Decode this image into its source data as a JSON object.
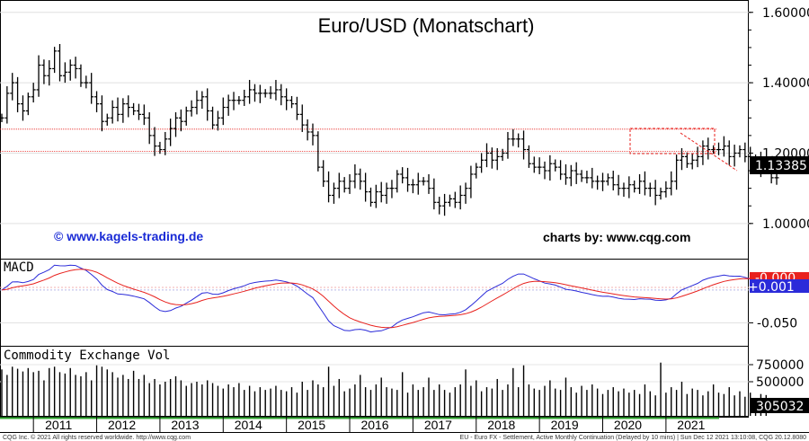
{
  "chart_data": [
    {
      "type": "ohlc",
      "title": "Euro/USD (Monatschart)",
      "watermark": "© www.kagels-trading.de",
      "source_note": "charts by: www.cqg.com",
      "last_value_label": "1.13385",
      "last_value": 1.13385,
      "y_ticks": [
        {
          "value": 1.6,
          "label": "1.60000"
        },
        {
          "value": 1.4,
          "label": "1.40000"
        },
        {
          "value": 1.2,
          "label": "1.20000"
        },
        {
          "value": 1.0,
          "label": "1.00000"
        }
      ],
      "ylim": [
        0.9,
        1.63
      ],
      "x_start": 2010.5,
      "x_end": 2022.0,
      "horizontal_levels": [
        1.268,
        1.205
      ],
      "monthly_close": [
        1.3,
        1.37,
        1.4,
        1.34,
        1.32,
        1.36,
        1.38,
        1.45,
        1.42,
        1.44,
        1.49,
        1.42,
        1.43,
        1.45,
        1.44,
        1.4,
        1.4,
        1.36,
        1.34,
        1.29,
        1.3,
        1.33,
        1.31,
        1.34,
        1.33,
        1.32,
        1.31,
        1.3,
        1.25,
        1.22,
        1.21,
        1.24,
        1.27,
        1.3,
        1.29,
        1.32,
        1.33,
        1.35,
        1.36,
        1.32,
        1.28,
        1.3,
        1.33,
        1.35,
        1.35,
        1.35,
        1.36,
        1.38,
        1.37,
        1.37,
        1.37,
        1.37,
        1.38,
        1.36,
        1.35,
        1.34,
        1.31,
        1.28,
        1.26,
        1.25,
        1.16,
        1.12,
        1.08,
        1.1,
        1.12,
        1.1,
        1.12,
        1.14,
        1.12,
        1.09,
        1.06,
        1.09,
        1.08,
        1.1,
        1.1,
        1.14,
        1.13,
        1.11,
        1.11,
        1.12,
        1.12,
        1.1,
        1.06,
        1.05,
        1.06,
        1.07,
        1.06,
        1.08,
        1.1,
        1.14,
        1.16,
        1.18,
        1.2,
        1.18,
        1.19,
        1.2,
        1.24,
        1.24,
        1.24,
        1.21,
        1.17,
        1.16,
        1.16,
        1.15,
        1.17,
        1.16,
        1.14,
        1.13,
        1.15,
        1.14,
        1.13,
        1.13,
        1.12,
        1.12,
        1.12,
        1.13,
        1.11,
        1.1,
        1.1,
        1.11,
        1.1,
        1.12,
        1.1,
        1.1,
        1.08,
        1.09,
        1.1,
        1.12,
        1.18,
        1.19,
        1.17,
        1.18,
        1.19,
        1.22,
        1.21,
        1.21,
        1.21,
        1.22,
        1.19,
        1.2,
        1.21,
        1.19,
        1.18,
        1.18,
        1.16,
        1.16,
        1.13,
        1.13
      ]
    },
    {
      "type": "line",
      "title": "MACD",
      "y_ticks": [
        {
          "value": -0.05,
          "label": "-0.050"
        }
      ],
      "ylim": [
        -0.085,
        0.045
      ],
      "badges": [
        {
          "label": "-0.000",
          "color": "#e8211d"
        },
        {
          "label": "+0.001",
          "color": "#2b2bd9"
        }
      ],
      "series": [
        {
          "color": "#2b2bd9"
        },
        {
          "color": "#e8211d"
        }
      ]
    },
    {
      "type": "bar",
      "title": "Commodity Exchange Vol",
      "y_ticks": [
        {
          "value": 750000,
          "label": "750000"
        },
        {
          "value": 500000,
          "label": "500000"
        }
      ],
      "ylim": [
        0,
        1000000
      ],
      "last_value_label": "305032",
      "values": [
        680000,
        600000,
        720000,
        690000,
        650000,
        700000,
        640000,
        660000,
        520000,
        700000,
        720000,
        640000,
        620000,
        700000,
        600000,
        580000,
        640000,
        520000,
        740000,
        720000,
        680000,
        640000,
        560000,
        600000,
        540000,
        660000,
        540000,
        600000,
        480000,
        540000,
        460000,
        500000,
        540000,
        580000,
        520000,
        440000,
        480000,
        500000,
        460000,
        520000,
        480000,
        440000,
        400000,
        460000,
        420000,
        480000,
        380000,
        440000,
        360000,
        420000,
        380000,
        400000,
        440000,
        380000,
        360000,
        420000,
        340000,
        500000,
        380000,
        520000,
        460000,
        420000,
        720000,
        440000,
        540000,
        360000,
        400000,
        460000,
        600000,
        420000,
        380000,
        460000,
        560000,
        420000,
        400000,
        380000,
        640000,
        340000,
        460000,
        380000,
        420000,
        560000,
        380000,
        460000,
        380000,
        340000,
        420000,
        460000,
        680000,
        440000,
        520000,
        360000,
        420000,
        400000,
        540000,
        380000,
        460000,
        700000,
        420000,
        740000,
        460000,
        400000,
        380000,
        440000,
        520000,
        400000,
        380000,
        560000,
        420000,
        340000,
        440000,
        380000,
        460000,
        400000,
        320000,
        380000,
        420000,
        360000,
        400000,
        340000,
        380000,
        320000,
        460000,
        360000,
        300000,
        780000,
        340000,
        420000,
        380000,
        500000,
        320000,
        400000,
        380000,
        300000,
        360000,
        460000,
        340000,
        320000,
        420000,
        300000,
        360000,
        280000,
        340000,
        260000,
        320000,
        305032
      ]
    }
  ],
  "x_axis": {
    "years": [
      "2011",
      "2012",
      "2013",
      "2014",
      "2015",
      "2016",
      "2017",
      "2018",
      "2019",
      "2020",
      "2021"
    ]
  },
  "footer": {
    "left": "CQG Inc. © 2021 All rights reserved worldwide. http://www.cqg.com",
    "right": "EU - Euro FX - Settlement, Active Monthly Continuation (Delayed by 10 mins) | Sun Dec 12 2021 13:10:08, CQG 20.12.8080"
  }
}
